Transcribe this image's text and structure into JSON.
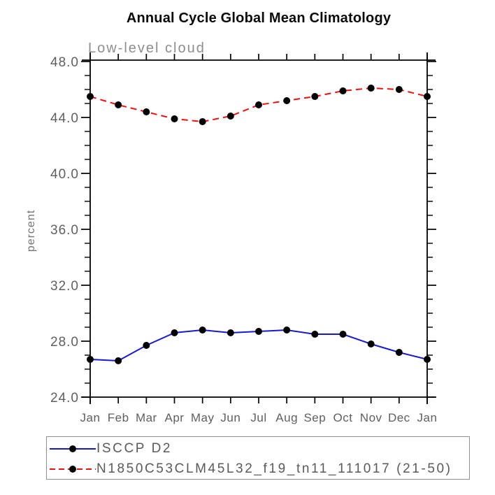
{
  "chart_data": {
    "type": "line",
    "title": "Annual Cycle Global Mean Climatology",
    "subtitle": "Low-level cloud",
    "xlabel": "",
    "ylabel": "percent",
    "categories": [
      "Jan",
      "Feb",
      "Mar",
      "Apr",
      "May",
      "Jun",
      "Jul",
      "Aug",
      "Sep",
      "Oct",
      "Nov",
      "Dec",
      "Jan"
    ],
    "ylim": [
      24.0,
      48.0
    ],
    "y_major_ticks": [
      24,
      28,
      32,
      36,
      40,
      44,
      48
    ],
    "y_tick_labels": [
      "24.0",
      "28.0",
      "32.0",
      "36.0",
      "40.0",
      "44.0",
      "48.0"
    ],
    "y_minor_step": 1,
    "grid": false,
    "legend_position": "bottom-left",
    "series": [
      {
        "name": "ISCCP D2",
        "color": "#1a1acd",
        "line_style": "solid",
        "marker": "filled-circle",
        "marker_color": "#000000",
        "values": [
          26.7,
          26.6,
          27.7,
          28.6,
          28.8,
          28.6,
          28.7,
          28.8,
          28.5,
          28.5,
          27.8,
          27.2,
          26.7
        ]
      },
      {
        "name": "N1850C53CLM45L32_f19_tn11_111017 (21-50)",
        "color": "#ea1212",
        "line_style": "dashed",
        "marker": "filled-circle",
        "marker_color": "#000000",
        "values": [
          45.5,
          44.9,
          44.4,
          43.9,
          43.7,
          44.1,
          44.9,
          45.2,
          45.5,
          45.9,
          46.1,
          46.0,
          45.5
        ]
      }
    ]
  },
  "colors": {
    "axis": "#000000",
    "tick_label": "#5f5f5f",
    "subtitle": "#8e8e8e",
    "legend_border": "#8f8f8f"
  }
}
